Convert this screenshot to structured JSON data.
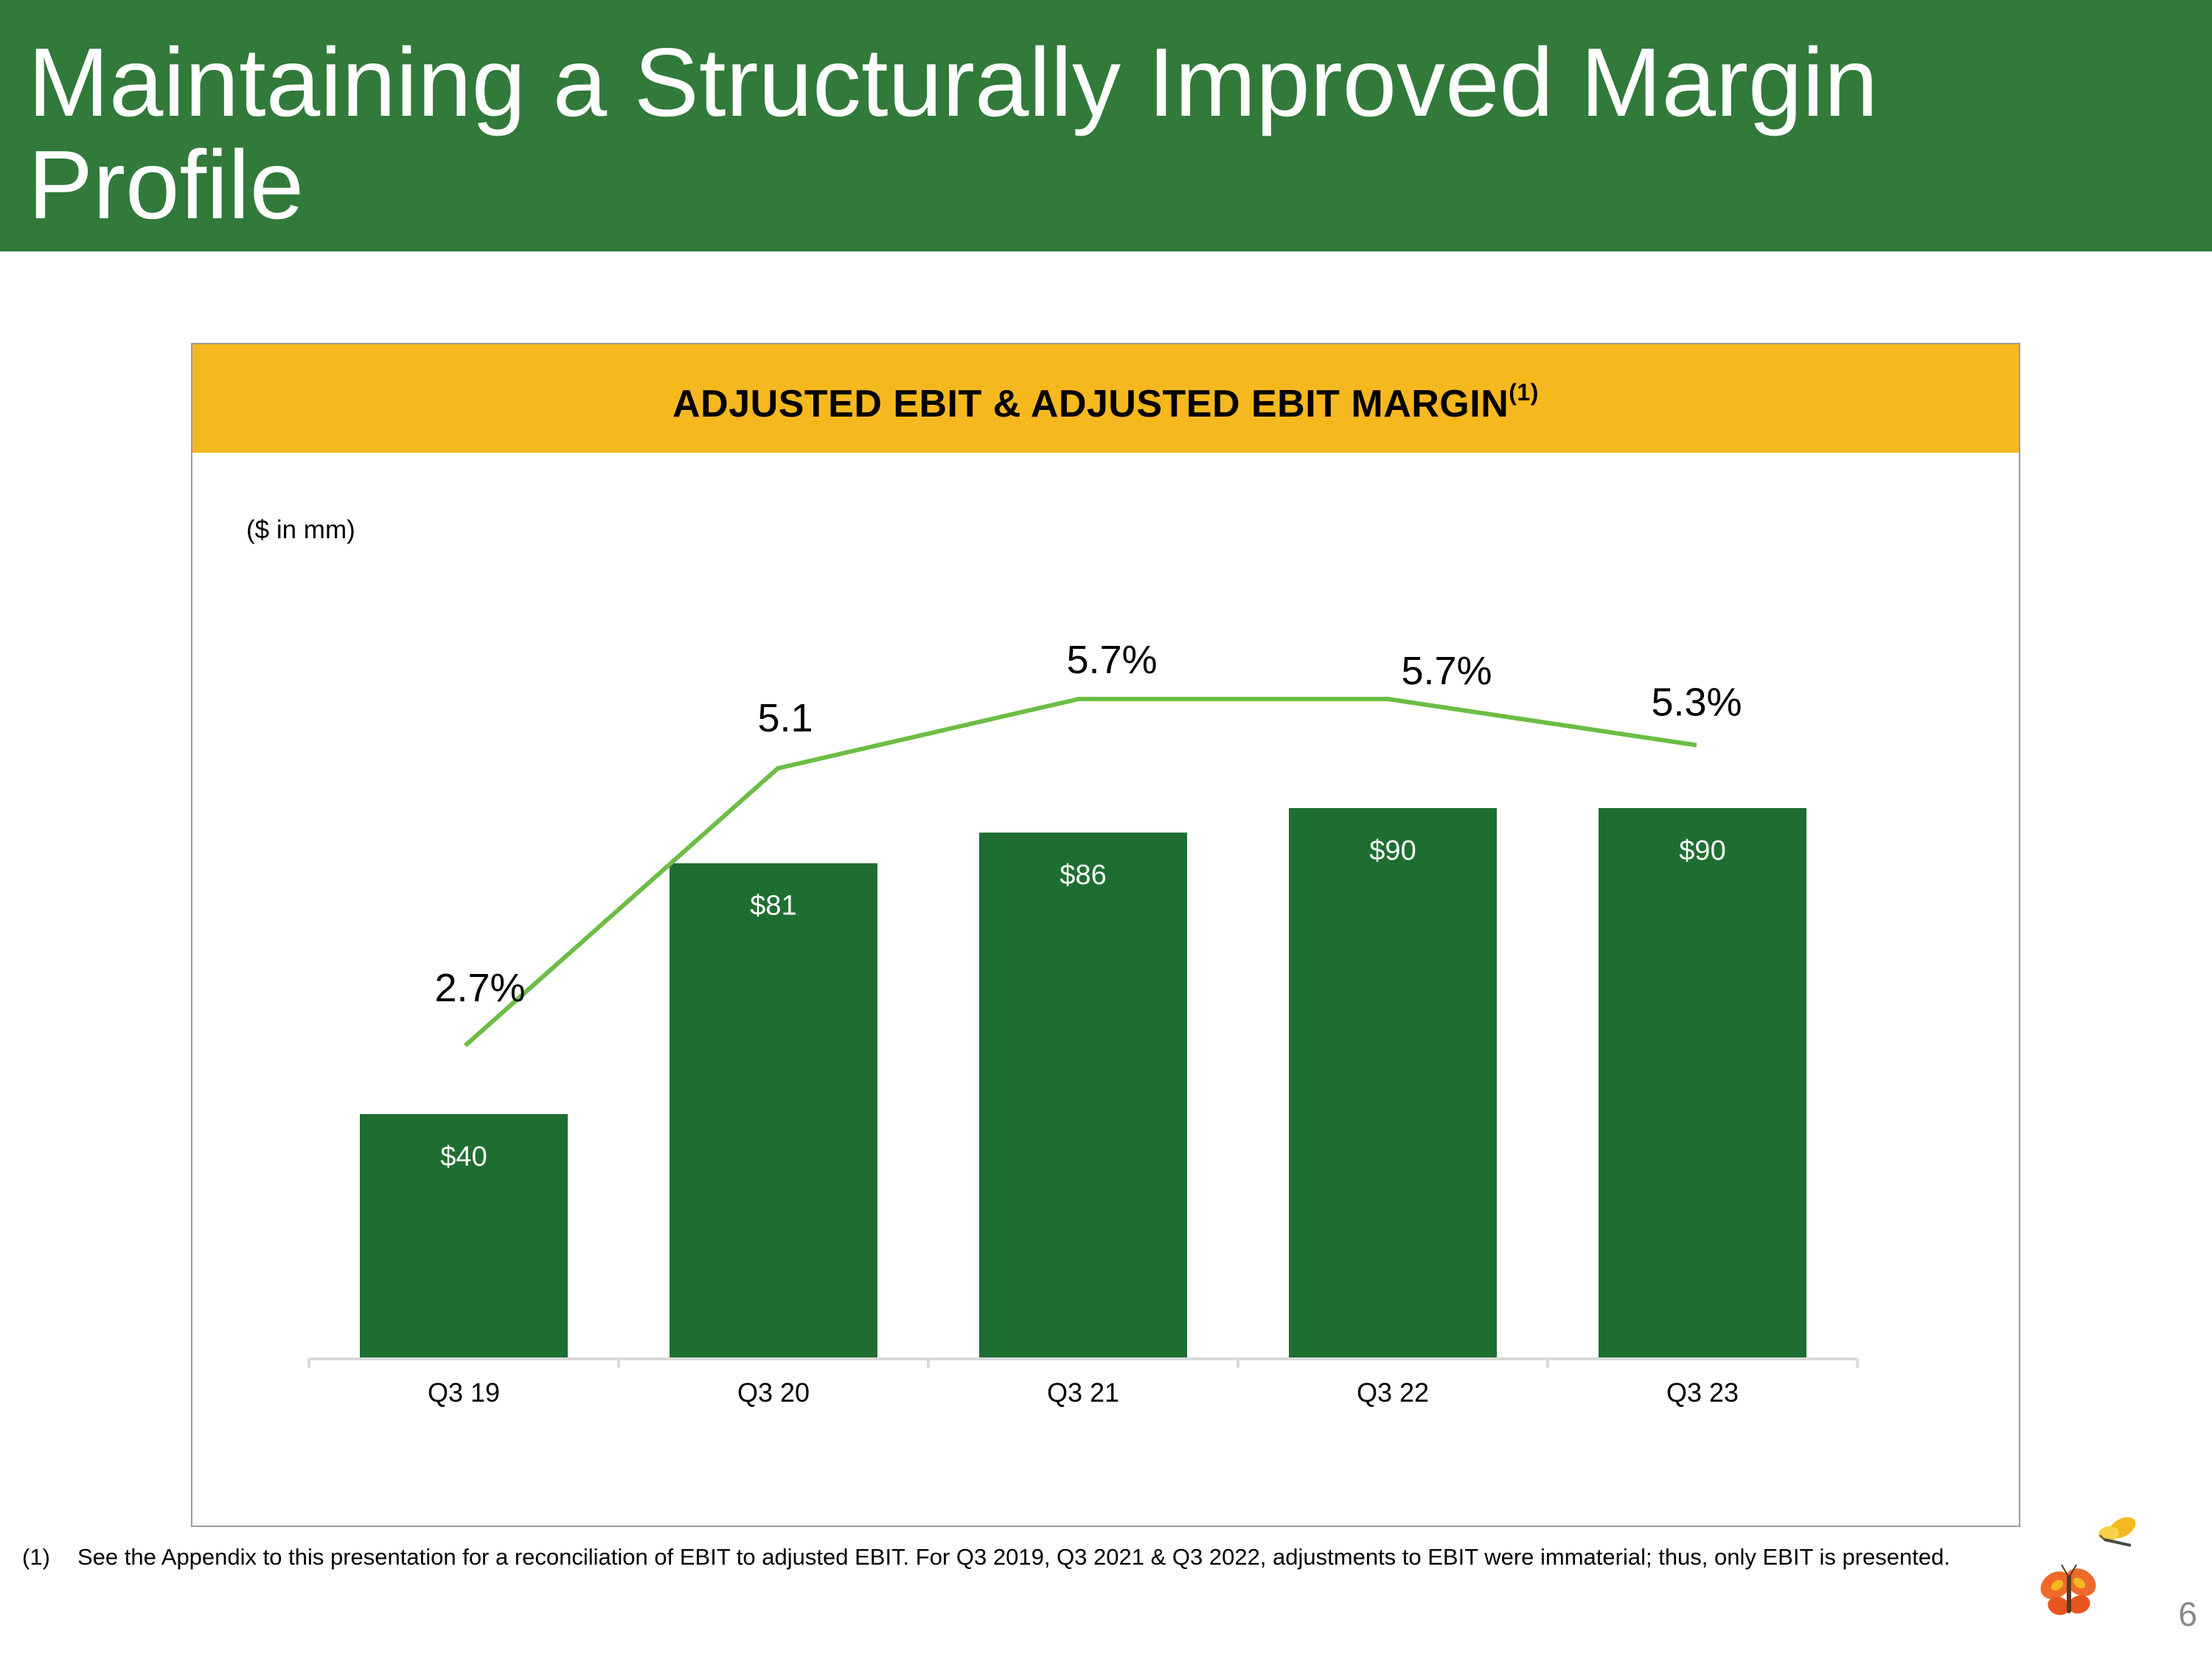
{
  "slide": {
    "title": "Maintaining a Structurally Improved Margin Profile",
    "page_number": "6",
    "colors": {
      "header": "#317a3a",
      "banner": "#f6b81f",
      "bar": "#1e6e31",
      "line": "#6cbd45"
    }
  },
  "chart_header": {
    "title": "ADJUSTED EBIT & ADJUSTED EBIT MARGIN",
    "title_superscript": "(1)",
    "units_note": "($ in mm)"
  },
  "chart_data": {
    "type": "bar",
    "title": "ADJUSTED EBIT & ADJUSTED EBIT MARGIN(1)",
    "xlabel": "",
    "ylabel": "",
    "categories": [
      "Q3 19",
      "Q3 20",
      "Q3 21",
      "Q3 22",
      "Q3 23"
    ],
    "series": [
      {
        "name": "Adjusted EBIT ($ in mm)",
        "type": "bar",
        "values": [
          40,
          81,
          86,
          90,
          90
        ],
        "labels": [
          "$40",
          "$81",
          "$86",
          "$90",
          "$90"
        ]
      },
      {
        "name": "Adjusted EBIT Margin (%)",
        "type": "line",
        "values": [
          2.7,
          5.1,
          5.7,
          5.7,
          5.3
        ],
        "labels": [
          "2.7%",
          "5.1",
          "5.7%",
          "5.7%",
          "5.3%"
        ]
      }
    ],
    "bar_ylim": [
      0,
      90
    ],
    "line_ylim": [
      2.7,
      5.7
    ],
    "grid": false,
    "legend": "none"
  },
  "footnote": {
    "marker": "(1)",
    "text": "See the Appendix to this presentation for a reconciliation of EBIT to adjusted EBIT.  For Q3 2019, Q3 2021 & Q3 2022, adjustments to EBIT were immaterial; thus, only EBIT is presented."
  },
  "logo": {
    "icon": "butterfly-logo-icon"
  }
}
